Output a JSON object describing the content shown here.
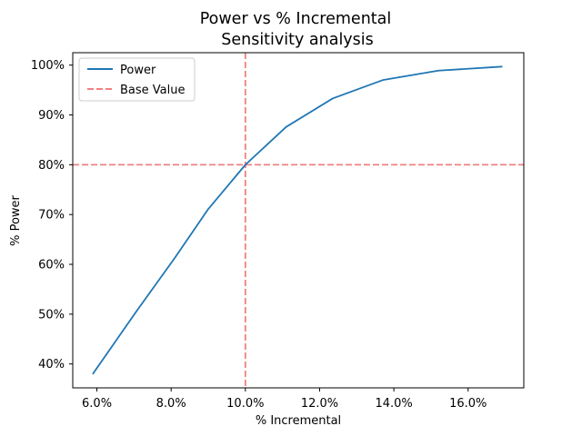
{
  "chart_data": {
    "type": "line",
    "title": "Power vs % Incremental",
    "subtitle": "Sensitivity analysis",
    "xlabel": "% Incremental",
    "ylabel": "% Power",
    "xlim": [
      0.0535,
      0.175
    ],
    "ylim": [
      0.352,
      1.025
    ],
    "x_ticks": [
      0.06,
      0.08,
      0.1,
      0.12,
      0.14,
      0.16
    ],
    "x_tick_labels": [
      "6.0%",
      "8.0%",
      "10.0%",
      "12.0%",
      "14.0%",
      "16.0%"
    ],
    "y_ticks": [
      0.4,
      0.5,
      0.6,
      0.7,
      0.8,
      0.9,
      1.0
    ],
    "y_tick_labels": [
      "40%",
      "50%",
      "60%",
      "70%",
      "80%",
      "90%",
      "100%"
    ],
    "grid": false,
    "legend_position": "top-left",
    "series": [
      {
        "name": "Power",
        "color": "#1f77b4",
        "style": "solid",
        "x": [
          0.059,
          0.0705,
          0.081,
          0.09,
          0.1,
          0.111,
          0.1235,
          0.137,
          0.152,
          0.169
        ],
        "y": [
          0.381,
          0.504,
          0.613,
          0.711,
          0.8,
          0.876,
          0.933,
          0.97,
          0.989,
          0.997
        ]
      }
    ],
    "reference_lines": [
      {
        "name": "Base Value",
        "color": "#f08080",
        "style": "dashed",
        "orientation": "vertical",
        "value": 0.1
      },
      {
        "name": "Base Value",
        "color": "#f08080",
        "style": "dashed",
        "orientation": "horizontal",
        "value": 0.8
      }
    ],
    "legend": [
      {
        "label": "Power",
        "color": "#1f77b4",
        "style": "solid"
      },
      {
        "label": "Base Value",
        "color": "#f08080",
        "style": "dashed"
      }
    ]
  }
}
